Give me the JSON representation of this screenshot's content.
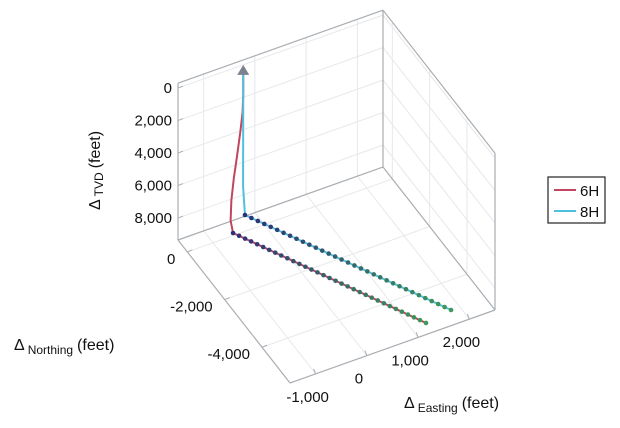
{
  "chart_data": {
    "type": "line3d",
    "title": "",
    "xlabel": {
      "main": "Δ",
      "sub": "Easting",
      "unit": "(feet)"
    },
    "ylabel": {
      "main": "Δ",
      "sub": "Northing",
      "unit": "(feet)"
    },
    "zlabel": {
      "main": "Δ",
      "sub": "TVD",
      "unit": "(feet)"
    },
    "xlim": [
      -1500,
      2500
    ],
    "ylim": [
      -5500,
      500
    ],
    "zlim": [
      -300,
      9350
    ],
    "z_reversed": true,
    "xticks": [
      -1000,
      0,
      1000,
      2000
    ],
    "xtick_labels": [
      "-1,000",
      "0",
      "1,000",
      "2,000"
    ],
    "yticks": [
      0,
      -2000,
      -4000
    ],
    "ytick_labels": [
      "0",
      "-2,000",
      "-4,000"
    ],
    "zticks": [
      0,
      2000,
      4000,
      6000,
      8000
    ],
    "ztick_labels": [
      "0",
      "2,000",
      "4,000",
      "6,000",
      "8,000"
    ],
    "grid": true,
    "legend_position": "right",
    "wellhead": {
      "easting": -300,
      "northing": 300,
      "tvd": 0,
      "color": "#7a8290"
    },
    "series": [
      {
        "name": "6H",
        "color": "#c0455e",
        "points": [
          [
            -300,
            300,
            0
          ],
          [
            -300,
            300,
            1500
          ],
          [
            -320,
            280,
            2500
          ],
          [
            -380,
            230,
            3500
          ],
          [
            -470,
            160,
            4800
          ],
          [
            -560,
            90,
            6000
          ],
          [
            -630,
            30,
            7200
          ],
          [
            -670,
            -40,
            8300
          ],
          [
            -664,
            -153,
            8900
          ],
          [
            1205,
            -5360,
            8900
          ]
        ]
      },
      {
        "name": "8H",
        "color": "#4fc0dd",
        "points": [
          [
            -300,
            300,
            0
          ],
          [
            -300,
            300,
            2000
          ],
          [
            -302,
            298,
            4000
          ],
          [
            -304,
            296,
            6000
          ],
          [
            -306,
            290,
            7100
          ],
          [
            -300,
            260,
            7900
          ],
          [
            -306,
            190,
            8700
          ],
          [
            1742,
            -5226,
            8900
          ]
        ]
      }
    ],
    "marker_colors": [
      "#2c2f7a",
      "#3c9a5a"
    ]
  }
}
